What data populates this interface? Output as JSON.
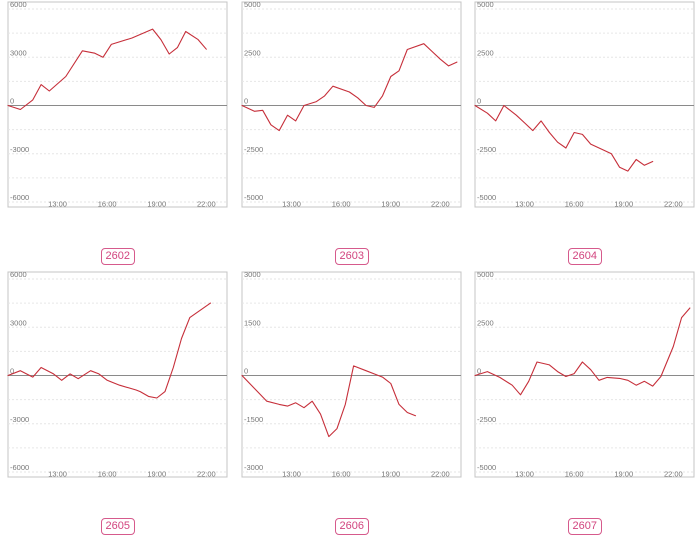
{
  "chart_data": [
    {
      "type": "line",
      "label": "2602",
      "ylim": [
        -6000,
        6000
      ],
      "y_ticks": [
        6000,
        3000,
        0,
        -3000,
        -6000
      ],
      "x_ticks": [
        "13:00",
        "16:00",
        "19:00",
        "22:00"
      ],
      "series": [
        {
          "color": "#c62f3a",
          "points": [
            {
              "x": "10:00",
              "y": 0
            },
            {
              "x": "10:45",
              "y": -250
            },
            {
              "x": "11:30",
              "y": 350
            },
            {
              "x": "12:00",
              "y": 1300
            },
            {
              "x": "12:30",
              "y": 900
            },
            {
              "x": "13:30",
              "y": 1800
            },
            {
              "x": "14:30",
              "y": 3400
            },
            {
              "x": "15:15",
              "y": 3250
            },
            {
              "x": "15:45",
              "y": 3000
            },
            {
              "x": "16:15",
              "y": 3800
            },
            {
              "x": "17:30",
              "y": 4200
            },
            {
              "x": "18:45",
              "y": 4750
            },
            {
              "x": "19:15",
              "y": 4100
            },
            {
              "x": "19:45",
              "y": 3200
            },
            {
              "x": "20:15",
              "y": 3600
            },
            {
              "x": "20:45",
              "y": 4600
            },
            {
              "x": "21:30",
              "y": 4100
            },
            {
              "x": "22:00",
              "y": 3500
            }
          ]
        }
      ]
    },
    {
      "type": "line",
      "label": "2603",
      "ylim": [
        -5000,
        5000
      ],
      "y_ticks": [
        5000,
        2500,
        0,
        -2500,
        -5000
      ],
      "x_ticks": [
        "13:00",
        "16:00",
        "19:00",
        "22:00"
      ],
      "series": [
        {
          "color": "#c62f3a",
          "points": [
            {
              "x": "10:00",
              "y": 0
            },
            {
              "x": "10:45",
              "y": -300
            },
            {
              "x": "11:15",
              "y": -250
            },
            {
              "x": "11:45",
              "y": -1000
            },
            {
              "x": "12:15",
              "y": -1300
            },
            {
              "x": "12:45",
              "y": -500
            },
            {
              "x": "13:15",
              "y": -800
            },
            {
              "x": "13:45",
              "y": 0
            },
            {
              "x": "14:30",
              "y": 200
            },
            {
              "x": "15:00",
              "y": 500
            },
            {
              "x": "15:30",
              "y": 1000
            },
            {
              "x": "16:30",
              "y": 700
            },
            {
              "x": "17:00",
              "y": 400
            },
            {
              "x": "17:30",
              "y": 0
            },
            {
              "x": "18:00",
              "y": -100
            },
            {
              "x": "18:30",
              "y": 500
            },
            {
              "x": "19:00",
              "y": 1500
            },
            {
              "x": "19:30",
              "y": 1800
            },
            {
              "x": "20:00",
              "y": 2900
            },
            {
              "x": "21:00",
              "y": 3200
            },
            {
              "x": "21:30",
              "y": 2800
            },
            {
              "x": "22:00",
              "y": 2400
            },
            {
              "x": "22:30",
              "y": 2050
            },
            {
              "x": "23:00",
              "y": 2250
            }
          ]
        }
      ]
    },
    {
      "type": "line",
      "label": "2604",
      "ylim": [
        -5000,
        5000
      ],
      "y_ticks": [
        5000,
        2500,
        0,
        -2500,
        -5000
      ],
      "x_ticks": [
        "13:00",
        "16:00",
        "19:00",
        "22:00"
      ],
      "series": [
        {
          "color": "#c62f3a",
          "points": [
            {
              "x": "10:00",
              "y": 0
            },
            {
              "x": "10:45",
              "y": -400
            },
            {
              "x": "11:15",
              "y": -800
            },
            {
              "x": "11:45",
              "y": 0
            },
            {
              "x": "12:30",
              "y": -500
            },
            {
              "x": "13:00",
              "y": -900
            },
            {
              "x": "13:30",
              "y": -1300
            },
            {
              "x": "14:00",
              "y": -800
            },
            {
              "x": "14:30",
              "y": -1400
            },
            {
              "x": "15:00",
              "y": -1900
            },
            {
              "x": "15:30",
              "y": -2200
            },
            {
              "x": "16:00",
              "y": -1400
            },
            {
              "x": "16:30",
              "y": -1500
            },
            {
              "x": "17:00",
              "y": -2000
            },
            {
              "x": "17:45",
              "y": -2300
            },
            {
              "x": "18:15",
              "y": -2500
            },
            {
              "x": "18:45",
              "y": -3200
            },
            {
              "x": "19:15",
              "y": -3400
            },
            {
              "x": "19:45",
              "y": -2800
            },
            {
              "x": "20:15",
              "y": -3100
            },
            {
              "x": "20:45",
              "y": -2900
            }
          ]
        }
      ]
    },
    {
      "type": "line",
      "label": "2605",
      "ylim": [
        -6000,
        6000
      ],
      "y_ticks": [
        6000,
        3000,
        0,
        -3000,
        -6000
      ],
      "x_ticks": [
        "13:00",
        "16:00",
        "19:00",
        "22:00"
      ],
      "series": [
        {
          "color": "#c62f3a",
          "points": [
            {
              "x": "10:00",
              "y": 0
            },
            {
              "x": "10:45",
              "y": 300
            },
            {
              "x": "11:30",
              "y": -100
            },
            {
              "x": "12:00",
              "y": 500
            },
            {
              "x": "12:45",
              "y": 100
            },
            {
              "x": "13:15",
              "y": -300
            },
            {
              "x": "13:45",
              "y": 100
            },
            {
              "x": "14:15",
              "y": -200
            },
            {
              "x": "15:00",
              "y": 300
            },
            {
              "x": "15:30",
              "y": 100
            },
            {
              "x": "16:00",
              "y": -300
            },
            {
              "x": "16:45",
              "y": -600
            },
            {
              "x": "17:45",
              "y": -900
            },
            {
              "x": "18:00",
              "y": -1000
            },
            {
              "x": "18:30",
              "y": -1300
            },
            {
              "x": "19:00",
              "y": -1400
            },
            {
              "x": "19:30",
              "y": -1000
            },
            {
              "x": "20:00",
              "y": 500
            },
            {
              "x": "20:30",
              "y": 2300
            },
            {
              "x": "21:00",
              "y": 3600
            },
            {
              "x": "22:15",
              "y": 4500
            }
          ]
        }
      ]
    },
    {
      "type": "line",
      "label": "2606",
      "ylim": [
        -3000,
        3000
      ],
      "y_ticks": [
        3000,
        1500,
        0,
        -1500,
        -3000
      ],
      "x_ticks": [
        "13:00",
        "16:00",
        "19:00",
        "22:00"
      ],
      "series": [
        {
          "color": "#c62f3a",
          "points": [
            {
              "x": "10:00",
              "y": 0
            },
            {
              "x": "10:45",
              "y": -400
            },
            {
              "x": "11:30",
              "y": -800
            },
            {
              "x": "12:15",
              "y": -900
            },
            {
              "x": "12:45",
              "y": -950
            },
            {
              "x": "13:15",
              "y": -850
            },
            {
              "x": "13:45",
              "y": -1000
            },
            {
              "x": "14:15",
              "y": -800
            },
            {
              "x": "14:45",
              "y": -1200
            },
            {
              "x": "15:15",
              "y": -1900
            },
            {
              "x": "15:45",
              "y": -1650
            },
            {
              "x": "16:15",
              "y": -900
            },
            {
              "x": "16:45",
              "y": 300
            },
            {
              "x": "17:30",
              "y": 150
            },
            {
              "x": "18:00",
              "y": 50
            },
            {
              "x": "18:30",
              "y": -50
            },
            {
              "x": "19:00",
              "y": -250
            },
            {
              "x": "19:30",
              "y": -900
            },
            {
              "x": "20:00",
              "y": -1150
            },
            {
              "x": "20:30",
              "y": -1250
            }
          ]
        }
      ]
    },
    {
      "type": "line",
      "label": "2607",
      "ylim": [
        -5000,
        5000
      ],
      "y_ticks": [
        5000,
        2500,
        0,
        -2500,
        -5000
      ],
      "x_ticks": [
        "13:00",
        "16:00",
        "19:00",
        "22:00"
      ],
      "series": [
        {
          "color": "#c62f3a",
          "points": [
            {
              "x": "10:00",
              "y": 0
            },
            {
              "x": "10:45",
              "y": 200
            },
            {
              "x": "11:30",
              "y": -100
            },
            {
              "x": "12:15",
              "y": -500
            },
            {
              "x": "12:45",
              "y": -1000
            },
            {
              "x": "13:15",
              "y": -300
            },
            {
              "x": "13:45",
              "y": 700
            },
            {
              "x": "14:30",
              "y": 550
            },
            {
              "x": "15:00",
              "y": 200
            },
            {
              "x": "15:30",
              "y": -50
            },
            {
              "x": "16:00",
              "y": 100
            },
            {
              "x": "16:30",
              "y": 700
            },
            {
              "x": "17:00",
              "y": 300
            },
            {
              "x": "17:30",
              "y": -250
            },
            {
              "x": "18:00",
              "y": -100
            },
            {
              "x": "18:45",
              "y": -150
            },
            {
              "x": "19:15",
              "y": -250
            },
            {
              "x": "19:45",
              "y": -500
            },
            {
              "x": "20:15",
              "y": -300
            },
            {
              "x": "20:45",
              "y": -550
            },
            {
              "x": "21:15",
              "y": -50
            },
            {
              "x": "22:00",
              "y": 1500
            },
            {
              "x": "22:30",
              "y": 3000
            },
            {
              "x": "23:00",
              "y": 3500
            }
          ]
        }
      ]
    }
  ]
}
